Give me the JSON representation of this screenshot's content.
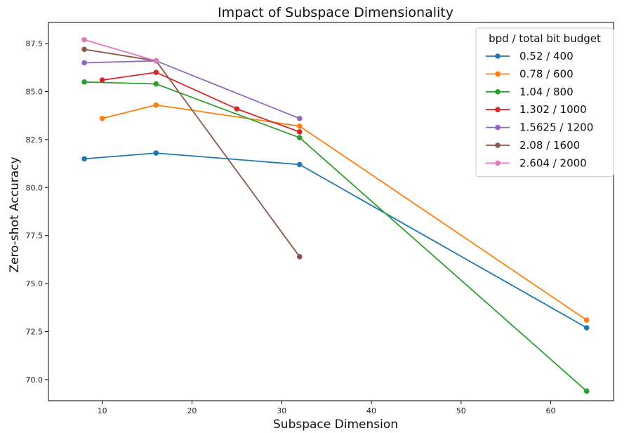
{
  "chart_data": {
    "type": "line",
    "title": "Impact of Subspace Dimensionality",
    "xlabel": "Subspace Dimension",
    "ylabel": "Zero-shot Accuracy",
    "xlim": [
      4,
      67
    ],
    "ylim": [
      68.9,
      88.6
    ],
    "xticks": [
      10,
      20,
      30,
      40,
      50,
      60
    ],
    "xtick_labels": [
      "10",
      "20",
      "30",
      "40",
      "50",
      "60"
    ],
    "yticks": [
      70.0,
      72.5,
      75.0,
      77.5,
      80.0,
      82.5,
      85.0,
      87.5
    ],
    "ytick_labels": [
      "70.0",
      "72.5",
      "75.0",
      "77.5",
      "80.0",
      "82.5",
      "85.0",
      "87.5"
    ],
    "grid": false,
    "legend_position": "top-right",
    "legend_title": "bpd / total bit budget",
    "series": [
      {
        "name": "0.52 / 400",
        "color": "#1f77b4",
        "x": [
          8,
          16,
          32,
          64
        ],
        "values": [
          81.5,
          81.8,
          81.2,
          72.7
        ]
      },
      {
        "name": "0.78 / 600",
        "color": "#ff7f0e",
        "x": [
          10,
          16,
          32,
          64
        ],
        "values": [
          83.6,
          84.3,
          83.2,
          73.1
        ]
      },
      {
        "name": "1.04 / 800",
        "color": "#2ca02c",
        "x": [
          8,
          16,
          32,
          64
        ],
        "values": [
          85.5,
          85.4,
          82.6,
          69.4
        ]
      },
      {
        "name": "1.302 / 1000",
        "color": "#d62728",
        "x": [
          10,
          16,
          25,
          32
        ],
        "values": [
          85.6,
          86.0,
          84.1,
          82.9
        ]
      },
      {
        "name": "1.5625 / 1200",
        "color": "#9467bd",
        "x": [
          8,
          16,
          32
        ],
        "values": [
          86.5,
          86.6,
          83.6
        ]
      },
      {
        "name": "2.08 / 1600",
        "color": "#8c564b",
        "x": [
          8,
          16,
          32
        ],
        "values": [
          87.2,
          86.6,
          76.4
        ]
      },
      {
        "name": "2.604 / 2000",
        "color": "#e377c2",
        "x": [
          8,
          16
        ],
        "values": [
          87.7,
          86.6
        ]
      }
    ]
  }
}
